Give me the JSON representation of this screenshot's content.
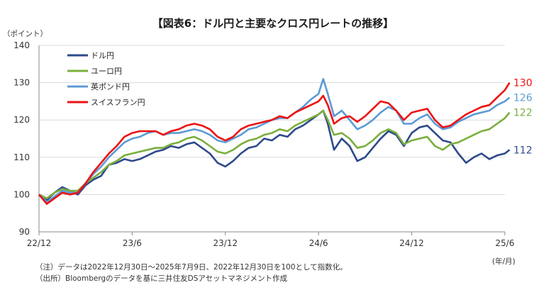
{
  "header": {
    "title": "【図表6：ドル円と主要なクロス円レートの推移】",
    "y_unit": "（ポイント）",
    "x_unit": "(年/月)"
  },
  "notes": {
    "note1": "（注）データは2022年12月30日～2025年7月9日、2022年12月30日を100として指数化。",
    "note2": "（出所）Bloombergのデータを基に三井住友DSアセットマネジメント作成"
  },
  "colors": {
    "usd": "#2e4a8c",
    "eur": "#7aaf3c",
    "gbp": "#5b9bd5",
    "chf": "#ee1111",
    "grid": "#d9d9d9",
    "axis": "#888888"
  },
  "chart_data": {
    "type": "line",
    "title": "【図表6：ドル円と主要なクロス円レートの推移】",
    "ylabel": "（ポイント）",
    "xlabel": "(年/月)",
    "ylim": [
      90,
      140
    ],
    "yticks": [
      90,
      100,
      110,
      120,
      130,
      140
    ],
    "xlim": [
      0,
      30.3
    ],
    "xticks": [
      {
        "label": "22/12",
        "x": 0
      },
      {
        "label": "23/6",
        "x": 6
      },
      {
        "label": "23/12",
        "x": 12
      },
      {
        "label": "24/6",
        "x": 18
      },
      {
        "label": "24/12",
        "x": 24
      },
      {
        "label": "25/6",
        "x": 30
      }
    ],
    "grid": true,
    "legend_position": "top-left",
    "series": [
      {
        "name": "ドル円",
        "color": "#2e4a8c",
        "end_label": "112",
        "points": [
          [
            0,
            100
          ],
          [
            0.5,
            98.5
          ],
          [
            1,
            100.5
          ],
          [
            1.5,
            102
          ],
          [
            2,
            101
          ],
          [
            2.5,
            100
          ],
          [
            3,
            102.5
          ],
          [
            3.5,
            104
          ],
          [
            4,
            105
          ],
          [
            4.5,
            108
          ],
          [
            5,
            108.5
          ],
          [
            5.5,
            109.5
          ],
          [
            6,
            109
          ],
          [
            6.5,
            109.5
          ],
          [
            7,
            110.5
          ],
          [
            7.5,
            111.5
          ],
          [
            8,
            112
          ],
          [
            8.5,
            113
          ],
          [
            9,
            112.5
          ],
          [
            9.5,
            113.5
          ],
          [
            10,
            114
          ],
          [
            10.5,
            112.5
          ],
          [
            11,
            111
          ],
          [
            11.5,
            108.5
          ],
          [
            12,
            107.5
          ],
          [
            12.5,
            109
          ],
          [
            13,
            111
          ],
          [
            13.5,
            112.5
          ],
          [
            14,
            113
          ],
          [
            14.5,
            115
          ],
          [
            15,
            114.5
          ],
          [
            15.5,
            116
          ],
          [
            16,
            115.5
          ],
          [
            16.5,
            117.5
          ],
          [
            17,
            118.5
          ],
          [
            17.5,
            120
          ],
          [
            18,
            121.5
          ],
          [
            18.3,
            122.5
          ],
          [
            18.6,
            119
          ],
          [
            19,
            112
          ],
          [
            19.5,
            115
          ],
          [
            20,
            113
          ],
          [
            20.5,
            109
          ],
          [
            21,
            110
          ],
          [
            21.5,
            112.5
          ],
          [
            22,
            115
          ],
          [
            22.5,
            117
          ],
          [
            23,
            116
          ],
          [
            23.5,
            113
          ],
          [
            24,
            116.5
          ],
          [
            24.5,
            118
          ],
          [
            25,
            118.5
          ],
          [
            25.5,
            116.5
          ],
          [
            26,
            114.5
          ],
          [
            26.5,
            114
          ],
          [
            27,
            111
          ],
          [
            27.5,
            108.5
          ],
          [
            28,
            110
          ],
          [
            28.5,
            111
          ],
          [
            29,
            109.5
          ],
          [
            29.5,
            110.5
          ],
          [
            30,
            111
          ],
          [
            30.3,
            112
          ]
        ]
      },
      {
        "name": "ユーロ円",
        "color": "#7aaf3c",
        "end_label": "122",
        "points": [
          [
            0,
            100
          ],
          [
            0.5,
            99
          ],
          [
            1,
            100.5
          ],
          [
            1.5,
            101.5
          ],
          [
            2,
            101
          ],
          [
            2.5,
            101
          ],
          [
            3,
            103
          ],
          [
            3.5,
            104.5
          ],
          [
            4,
            106
          ],
          [
            4.5,
            108
          ],
          [
            5,
            109
          ],
          [
            5.5,
            110.5
          ],
          [
            6,
            111
          ],
          [
            6.5,
            111.5
          ],
          [
            7,
            112
          ],
          [
            7.5,
            112.5
          ],
          [
            8,
            112.5
          ],
          [
            8.5,
            113.5
          ],
          [
            9,
            114
          ],
          [
            9.5,
            115
          ],
          [
            10,
            115.5
          ],
          [
            10.5,
            114.5
          ],
          [
            11,
            113
          ],
          [
            11.5,
            111.5
          ],
          [
            12,
            111
          ],
          [
            12.5,
            112
          ],
          [
            13,
            113.5
          ],
          [
            13.5,
            114.5
          ],
          [
            14,
            115
          ],
          [
            14.5,
            116
          ],
          [
            15,
            116.5
          ],
          [
            15.5,
            117.5
          ],
          [
            16,
            117
          ],
          [
            16.5,
            118.5
          ],
          [
            17,
            119.5
          ],
          [
            17.5,
            120.5
          ],
          [
            18,
            121.5
          ],
          [
            18.3,
            122.5
          ],
          [
            18.6,
            120
          ],
          [
            19,
            116
          ],
          [
            19.5,
            116.5
          ],
          [
            20,
            115
          ],
          [
            20.5,
            112.5
          ],
          [
            21,
            113
          ],
          [
            21.5,
            114.5
          ],
          [
            22,
            116.5
          ],
          [
            22.5,
            117.5
          ],
          [
            23,
            116.5
          ],
          [
            23.5,
            113.5
          ],
          [
            24,
            114.5
          ],
          [
            24.5,
            115
          ],
          [
            25,
            115.5
          ],
          [
            25.5,
            113
          ],
          [
            26,
            112
          ],
          [
            26.5,
            113.5
          ],
          [
            27,
            114
          ],
          [
            27.5,
            115
          ],
          [
            28,
            116
          ],
          [
            28.5,
            117
          ],
          [
            29,
            117.5
          ],
          [
            29.5,
            119
          ],
          [
            30,
            120.5
          ],
          [
            30.3,
            122
          ]
        ]
      },
      {
        "name": "英ポンド円",
        "color": "#5b9bd5",
        "end_label": "126",
        "points": [
          [
            0,
            100
          ],
          [
            0.5,
            98
          ],
          [
            1,
            99.5
          ],
          [
            1.5,
            101
          ],
          [
            2,
            100.5
          ],
          [
            2.5,
            100.5
          ],
          [
            3,
            103
          ],
          [
            3.5,
            105.5
          ],
          [
            4,
            107.5
          ],
          [
            4.5,
            110
          ],
          [
            5,
            112
          ],
          [
            5.5,
            114
          ],
          [
            6,
            115
          ],
          [
            6.5,
            115.5
          ],
          [
            7,
            116.5
          ],
          [
            7.5,
            117
          ],
          [
            8,
            116
          ],
          [
            8.5,
            116.5
          ],
          [
            9,
            116.5
          ],
          [
            9.5,
            117
          ],
          [
            10,
            117.5
          ],
          [
            10.5,
            117
          ],
          [
            11,
            116
          ],
          [
            11.5,
            114.5
          ],
          [
            12,
            114
          ],
          [
            12.5,
            115
          ],
          [
            13,
            116
          ],
          [
            13.5,
            117.5
          ],
          [
            14,
            118
          ],
          [
            14.5,
            119
          ],
          [
            15,
            120
          ],
          [
            15.5,
            120.5
          ],
          [
            16,
            120.5
          ],
          [
            16.5,
            122
          ],
          [
            17,
            123.5
          ],
          [
            17.5,
            125.5
          ],
          [
            18,
            127
          ],
          [
            18.3,
            131
          ],
          [
            18.6,
            127
          ],
          [
            19,
            121
          ],
          [
            19.5,
            122.5
          ],
          [
            20,
            120
          ],
          [
            20.5,
            117.5
          ],
          [
            21,
            118.5
          ],
          [
            21.5,
            120
          ],
          [
            22,
            122
          ],
          [
            22.5,
            123.5
          ],
          [
            23,
            122.5
          ],
          [
            23.5,
            119
          ],
          [
            24,
            119
          ],
          [
            24.5,
            120.5
          ],
          [
            25,
            121.5
          ],
          [
            25.5,
            119
          ],
          [
            26,
            117.5
          ],
          [
            26.5,
            118
          ],
          [
            27,
            119.5
          ],
          [
            27.5,
            120.5
          ],
          [
            28,
            121.5
          ],
          [
            28.5,
            122
          ],
          [
            29,
            122.5
          ],
          [
            29.5,
            124
          ],
          [
            30,
            125
          ],
          [
            30.3,
            126
          ]
        ]
      },
      {
        "name": "スイスフラン円",
        "color": "#ee1111",
        "end_label": "130",
        "points": [
          [
            0,
            100
          ],
          [
            0.5,
            97.5
          ],
          [
            1,
            99
          ],
          [
            1.5,
            100.5
          ],
          [
            2,
            100
          ],
          [
            2.5,
            100.5
          ],
          [
            3,
            103
          ],
          [
            3.5,
            106
          ],
          [
            4,
            108.5
          ],
          [
            4.5,
            111
          ],
          [
            5,
            113
          ],
          [
            5.5,
            115.5
          ],
          [
            6,
            116.5
          ],
          [
            6.5,
            117
          ],
          [
            7,
            117
          ],
          [
            7.5,
            117
          ],
          [
            8,
            116
          ],
          [
            8.5,
            117
          ],
          [
            9,
            117.5
          ],
          [
            9.5,
            118.5
          ],
          [
            10,
            119
          ],
          [
            10.5,
            118.5
          ],
          [
            11,
            117.5
          ],
          [
            11.5,
            115.5
          ],
          [
            12,
            114.5
          ],
          [
            12.5,
            115.5
          ],
          [
            13,
            117.5
          ],
          [
            13.5,
            118.5
          ],
          [
            14,
            119
          ],
          [
            14.5,
            119.5
          ],
          [
            15,
            120
          ],
          [
            15.5,
            121
          ],
          [
            16,
            120.5
          ],
          [
            16.5,
            122
          ],
          [
            17,
            123
          ],
          [
            17.5,
            124
          ],
          [
            18,
            125
          ],
          [
            18.3,
            126.5
          ],
          [
            18.6,
            124
          ],
          [
            19,
            119
          ],
          [
            19.5,
            120.5
          ],
          [
            20,
            121
          ],
          [
            20.5,
            119.5
          ],
          [
            21,
            121
          ],
          [
            21.5,
            123
          ],
          [
            22,
            125
          ],
          [
            22.5,
            124.5
          ],
          [
            23,
            122.5
          ],
          [
            23.5,
            120
          ],
          [
            24,
            122
          ],
          [
            24.5,
            122.5
          ],
          [
            25,
            123
          ],
          [
            25.5,
            120
          ],
          [
            26,
            118
          ],
          [
            26.5,
            118.5
          ],
          [
            27,
            120
          ],
          [
            27.5,
            121.5
          ],
          [
            28,
            122.5
          ],
          [
            28.5,
            123.5
          ],
          [
            29,
            124
          ],
          [
            29.5,
            126
          ],
          [
            30,
            128
          ],
          [
            30.3,
            130
          ]
        ]
      }
    ]
  }
}
